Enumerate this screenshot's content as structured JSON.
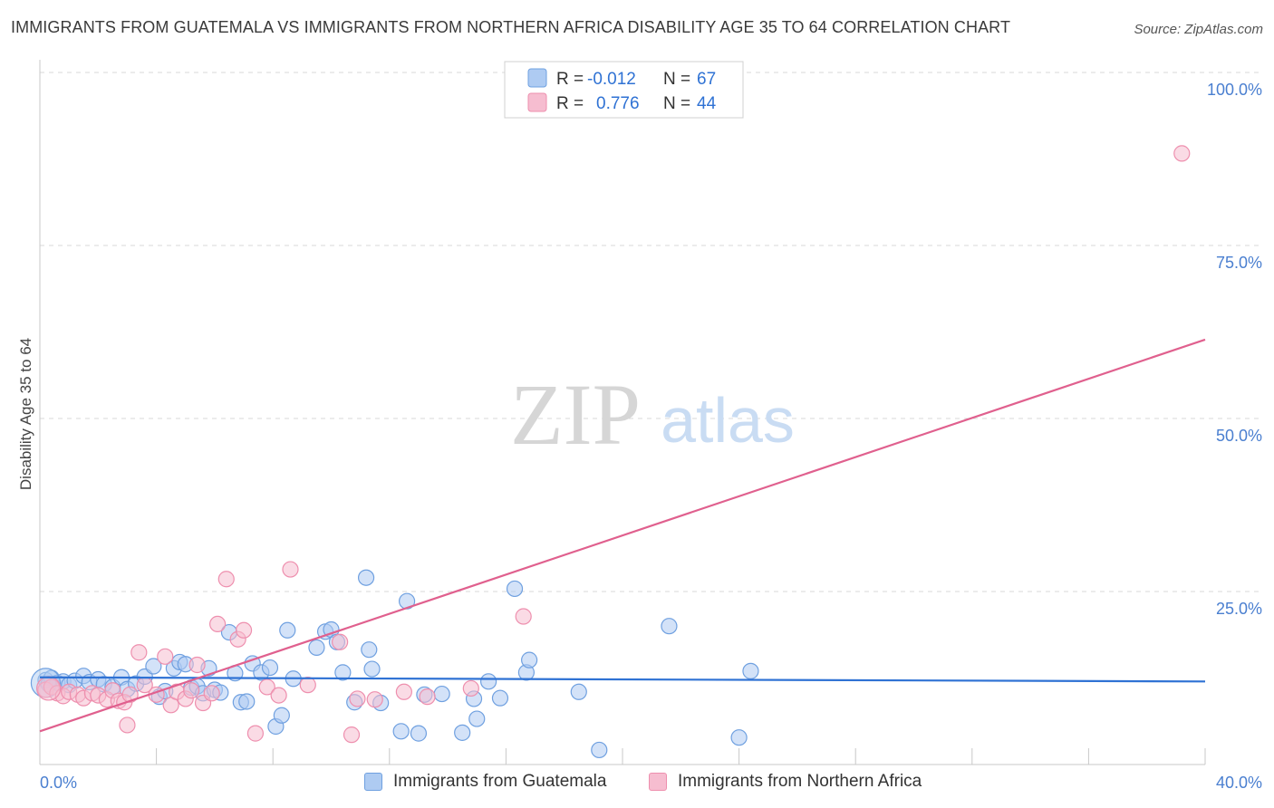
{
  "title": "IMMIGRANTS FROM GUATEMALA VS IMMIGRANTS FROM NORTHERN AFRICA DISABILITY AGE 35 TO 64 CORRELATION CHART",
  "source": "Source: ZipAtlas.com",
  "watermark": {
    "zip": "ZIP",
    "atlas": "atlas"
  },
  "colors": {
    "blue_fill": "#aecbf2",
    "blue_stroke": "#6fa0e0",
    "blue_line": "#2f72d4",
    "pink_fill": "#f6bdd0",
    "pink_stroke": "#ee8fae",
    "pink_line": "#e0608e",
    "axis_text": "#4a7fd0",
    "grid": "#d8d8d8"
  },
  "legend_top": {
    "rows": [
      {
        "r_label": "R =",
        "r_value": "-0.012",
        "n_label": "N =",
        "n_value": "67"
      },
      {
        "r_label": "R =",
        "r_value": "0.776",
        "n_label": "N =",
        "n_value": "44"
      }
    ]
  },
  "legend_bottom": {
    "items": [
      {
        "label": "Immigrants from Guatemala"
      },
      {
        "label": "Immigrants from Northern Africa"
      }
    ]
  },
  "chart_data": {
    "type": "scatter",
    "title": "IMMIGRANTS FROM GUATEMALA VS IMMIGRANTS FROM NORTHERN AFRICA DISABILITY AGE 35 TO 64 CORRELATION CHART",
    "xlabel": "",
    "ylabel": "Disability Age 35 to 64",
    "xlim": [
      0,
      40
    ],
    "ylim": [
      0,
      100
    ],
    "x_tick_labels": [
      "0.0%",
      "40.0%"
    ],
    "y_tick_labels": [
      "25.0%",
      "50.0%",
      "75.0%",
      "100.0%"
    ],
    "y_ticks": [
      25,
      50,
      75,
      100
    ],
    "grid": true,
    "legend_position": "top-center",
    "series": [
      {
        "name": "Immigrants from Guatemala",
        "color": "blue",
        "trend": {
          "x0": 0,
          "y0": 12.6,
          "x1": 40,
          "y1": 12.0
        },
        "points": [
          [
            0.2,
            12.2
          ],
          [
            0.4,
            12.5
          ],
          [
            0.6,
            11.8
          ],
          [
            0.8,
            12.0
          ],
          [
            1.0,
            11.5
          ],
          [
            1.2,
            12.1
          ],
          [
            1.5,
            12.8
          ],
          [
            1.7,
            11.9
          ],
          [
            2.0,
            12.3
          ],
          [
            2.2,
            11.6
          ],
          [
            2.5,
            11.2
          ],
          [
            2.8,
            12.6
          ],
          [
            3.0,
            10.9
          ],
          [
            3.3,
            11.7
          ],
          [
            3.6,
            12.7
          ],
          [
            3.9,
            14.2
          ],
          [
            4.1,
            9.8
          ],
          [
            4.3,
            10.6
          ],
          [
            4.6,
            13.9
          ],
          [
            4.8,
            14.8
          ],
          [
            5.0,
            14.5
          ],
          [
            5.2,
            11.1
          ],
          [
            5.4,
            11.3
          ],
          [
            5.6,
            10.3
          ],
          [
            5.8,
            13.9
          ],
          [
            6.0,
            10.8
          ],
          [
            6.2,
            10.4
          ],
          [
            6.5,
            19.1
          ],
          [
            6.7,
            13.2
          ],
          [
            6.9,
            9.0
          ],
          [
            7.1,
            9.1
          ],
          [
            7.3,
            14.6
          ],
          [
            7.6,
            13.3
          ],
          [
            7.9,
            14.0
          ],
          [
            8.1,
            5.5
          ],
          [
            8.3,
            7.1
          ],
          [
            8.5,
            19.4
          ],
          [
            8.7,
            12.4
          ],
          [
            9.5,
            16.9
          ],
          [
            9.8,
            19.2
          ],
          [
            10.0,
            19.5
          ],
          [
            10.2,
            17.7
          ],
          [
            10.4,
            13.3
          ],
          [
            10.8,
            9.0
          ],
          [
            11.2,
            27.0
          ],
          [
            11.3,
            16.6
          ],
          [
            11.4,
            13.8
          ],
          [
            11.7,
            8.9
          ],
          [
            12.4,
            4.8
          ],
          [
            12.6,
            23.6
          ],
          [
            13.0,
            4.5
          ],
          [
            13.2,
            10.1
          ],
          [
            13.8,
            10.2
          ],
          [
            14.5,
            4.6
          ],
          [
            14.9,
            9.5
          ],
          [
            15.0,
            6.6
          ],
          [
            15.4,
            12.0
          ],
          [
            15.8,
            9.6
          ],
          [
            16.3,
            25.4
          ],
          [
            16.7,
            13.3
          ],
          [
            16.8,
            15.1
          ],
          [
            18.5,
            10.5
          ],
          [
            19.2,
            2.1
          ],
          [
            21.6,
            20.0
          ],
          [
            24.0,
            3.9
          ],
          [
            24.4,
            13.5
          ],
          [
            0.3,
            11.6
          ]
        ]
      },
      {
        "name": "Immigrants from Northern Africa",
        "color": "pink",
        "trend": {
          "x0": 0,
          "y0": 4.8,
          "x1": 40,
          "y1": 61.4
        },
        "points": [
          [
            0.2,
            10.8
          ],
          [
            0.4,
            11.2
          ],
          [
            0.6,
            10.3
          ],
          [
            0.8,
            9.9
          ],
          [
            1.0,
            10.5
          ],
          [
            1.3,
            10.1
          ],
          [
            1.5,
            9.6
          ],
          [
            1.8,
            10.3
          ],
          [
            2.0,
            10.0
          ],
          [
            2.3,
            9.4
          ],
          [
            2.5,
            10.7
          ],
          [
            2.7,
            9.2
          ],
          [
            2.9,
            9.0
          ],
          [
            3.1,
            10.1
          ],
          [
            3.4,
            16.2
          ],
          [
            3.6,
            11.5
          ],
          [
            4.0,
            10.1
          ],
          [
            4.3,
            15.6
          ],
          [
            4.5,
            8.6
          ],
          [
            4.7,
            10.5
          ],
          [
            5.0,
            9.5
          ],
          [
            5.2,
            10.7
          ],
          [
            5.4,
            14.4
          ],
          [
            5.6,
            8.9
          ],
          [
            5.9,
            10.3
          ],
          [
            6.1,
            20.3
          ],
          [
            6.4,
            26.8
          ],
          [
            6.8,
            18.1
          ],
          [
            7.0,
            19.4
          ],
          [
            7.4,
            4.5
          ],
          [
            7.8,
            11.2
          ],
          [
            8.2,
            10.0
          ],
          [
            8.6,
            28.2
          ],
          [
            9.2,
            11.5
          ],
          [
            10.3,
            17.7
          ],
          [
            10.7,
            4.3
          ],
          [
            10.9,
            9.5
          ],
          [
            11.5,
            9.4
          ],
          [
            12.5,
            10.5
          ],
          [
            13.3,
            9.8
          ],
          [
            14.8,
            11.0
          ],
          [
            16.6,
            21.4
          ],
          [
            39.2,
            88.3
          ],
          [
            3.0,
            5.7
          ]
        ]
      }
    ]
  }
}
